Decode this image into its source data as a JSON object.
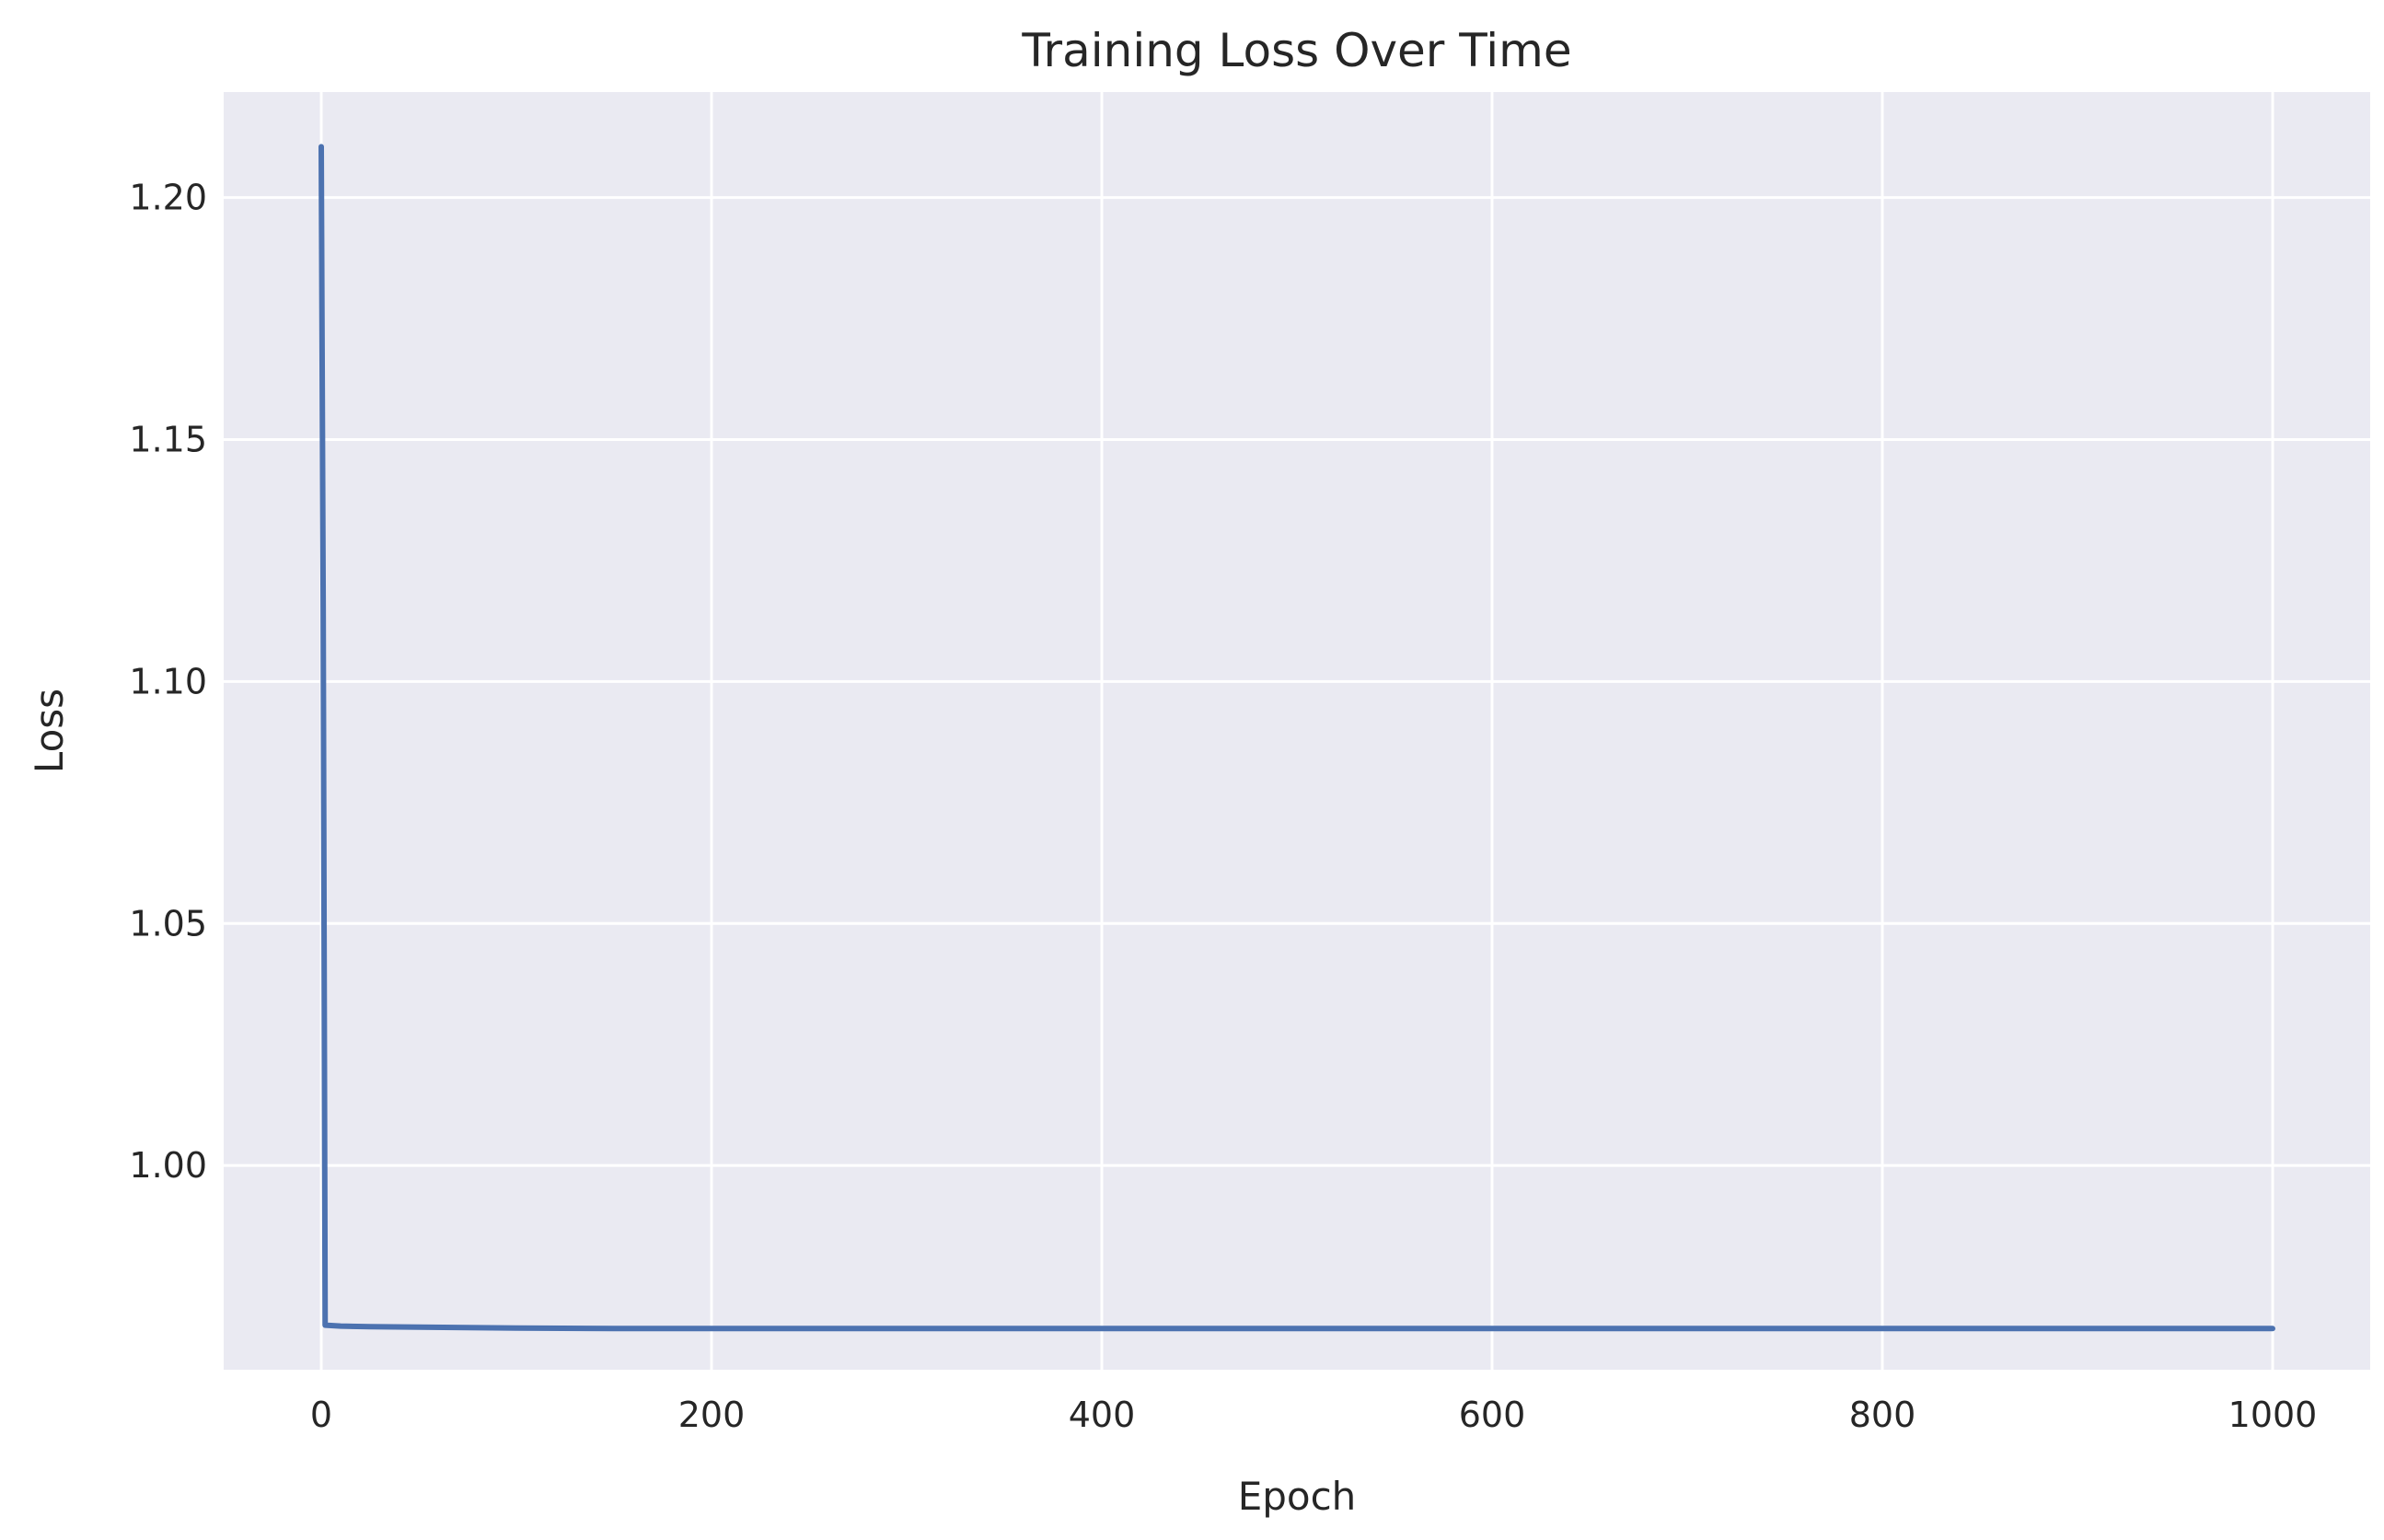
{
  "chart_data": {
    "type": "line",
    "title": "Training Loss Over Time",
    "xlabel": "Epoch",
    "ylabel": "Loss",
    "xlim": [
      -50,
      1050
    ],
    "ylim": [
      0.9578,
      1.2218
    ],
    "xticks": [
      0,
      200,
      400,
      600,
      800,
      1000
    ],
    "yticks": [
      1.0,
      1.05,
      1.1,
      1.15,
      1.2
    ],
    "xtick_labels": [
      "0",
      "200",
      "400",
      "600",
      "800",
      "1000"
    ],
    "ytick_labels": [
      "1.00",
      "1.05",
      "1.10",
      "1.15",
      "1.20"
    ],
    "grid": true,
    "colors": {
      "background": "#EAEAF2",
      "grid": "#FFFFFF",
      "line": "#4C72B0",
      "text": "#262626"
    },
    "series": [
      {
        "x": [
          0,
          1,
          2,
          10,
          25,
          50,
          75,
          100,
          150,
          200,
          300,
          400,
          500,
          600,
          700,
          800,
          900,
          1000
        ],
        "y": [
          1.2105,
          1.115,
          0.967,
          0.9668,
          0.9667,
          0.9666,
          0.9665,
          0.9664,
          0.9663,
          0.9663,
          0.9663,
          0.9663,
          0.9663,
          0.9663,
          0.9663,
          0.9663,
          0.9663,
          0.9663
        ]
      }
    ]
  }
}
